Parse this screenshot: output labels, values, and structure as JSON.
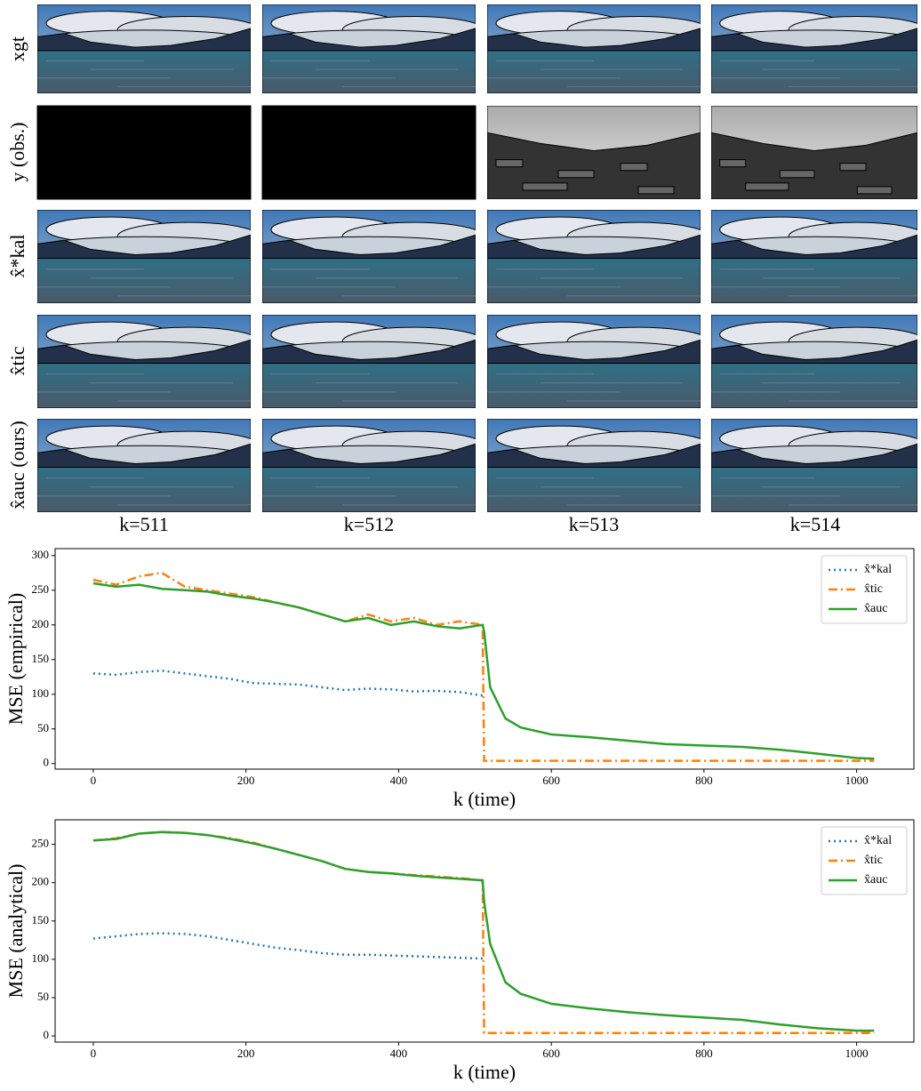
{
  "figure": {
    "row_labels": [
      "xgt",
      "y (obs.)",
      "x̂*kal",
      "x̂tic",
      "x̂auc (ours)"
    ],
    "column_labels": [
      "k=511",
      "k=512",
      "k=513",
      "k=514"
    ]
  },
  "chart_data": [
    {
      "type": "line",
      "y_label": "MSE (empirical)",
      "x_label": "k (time)",
      "x": [
        0,
        30,
        60,
        90,
        120,
        150,
        180,
        210,
        240,
        270,
        300,
        330,
        360,
        390,
        420,
        450,
        480,
        510,
        512,
        520,
        540,
        560,
        600,
        650,
        700,
        750,
        800,
        850,
        900,
        950,
        1000,
        1023
      ],
      "series": [
        {
          "name": "x̂*kal",
          "color": "#1f77b4",
          "linestyle": "dotted",
          "values": [
            130,
            128,
            132,
            134,
            130,
            126,
            122,
            116,
            115,
            114,
            110,
            106,
            108,
            107,
            104,
            105,
            103,
            98,
            null,
            null,
            null,
            null,
            null,
            null,
            null,
            null,
            null,
            null,
            null,
            null,
            null,
            null
          ]
        },
        {
          "name": "x̂tic",
          "color": "#ff7f0e",
          "linestyle": "dashdot",
          "values": [
            265,
            258,
            270,
            275,
            255,
            250,
            245,
            240,
            232,
            225,
            215,
            205,
            215,
            205,
            210,
            200,
            205,
            200,
            4,
            4,
            4,
            4,
            4,
            4,
            4,
            4,
            4,
            4,
            4,
            4,
            4,
            4
          ]
        },
        {
          "name": "x̂auc",
          "color": "#2ca02c",
          "linestyle": "solid",
          "values": [
            260,
            255,
            258,
            252,
            250,
            248,
            242,
            238,
            232,
            225,
            215,
            205,
            210,
            200,
            205,
            198,
            195,
            200,
            190,
            110,
            65,
            52,
            42,
            38,
            33,
            28,
            26,
            24,
            20,
            14,
            8,
            7
          ]
        }
      ],
      "xlim": [
        -50,
        1075
      ],
      "xticks": [
        0,
        200,
        400,
        600,
        800,
        1000
      ],
      "ylim": [
        -8,
        310
      ],
      "yticks": [
        0,
        50,
        100,
        150,
        200,
        250,
        300
      ],
      "legend": "upper right"
    },
    {
      "type": "line",
      "y_label": "MSE (analytical)",
      "x_label": "k (time)",
      "x": [
        0,
        30,
        60,
        90,
        120,
        150,
        180,
        210,
        240,
        270,
        300,
        330,
        360,
        390,
        420,
        450,
        480,
        510,
        512,
        520,
        540,
        560,
        600,
        650,
        700,
        750,
        800,
        850,
        900,
        950,
        1000,
        1023
      ],
      "series": [
        {
          "name": "x̂*kal",
          "color": "#1f77b4",
          "linestyle": "dotted",
          "values": [
            127,
            130,
            133,
            134,
            133,
            130,
            125,
            120,
            115,
            112,
            108,
            106,
            106,
            105,
            104,
            103,
            102,
            101,
            null,
            null,
            null,
            null,
            null,
            null,
            null,
            null,
            null,
            null,
            null,
            null,
            null,
            null
          ]
        },
        {
          "name": "x̂tic",
          "color": "#ff7f0e",
          "linestyle": "dashdot",
          "values": [
            255,
            258,
            264,
            266,
            265,
            262,
            258,
            252,
            244,
            236,
            228,
            218,
            214,
            212,
            210,
            208,
            206,
            203,
            4,
            4,
            4,
            4,
            4,
            4,
            4,
            4,
            4,
            4,
            4,
            4,
            4,
            4
          ]
        },
        {
          "name": "x̂auc",
          "color": "#2ca02c",
          "linestyle": "solid",
          "values": [
            255,
            257,
            264,
            266,
            265,
            262,
            257,
            251,
            244,
            236,
            228,
            218,
            214,
            212,
            209,
            207,
            205,
            203,
            175,
            120,
            70,
            55,
            42,
            36,
            31,
            27,
            24,
            21,
            15,
            10,
            7,
            7
          ]
        }
      ],
      "xlim": [
        -50,
        1075
      ],
      "xticks": [
        0,
        200,
        400,
        600,
        800,
        1000
      ],
      "ylim": [
        -8,
        282
      ],
      "yticks": [
        0,
        50,
        100,
        150,
        200,
        250
      ],
      "legend": "upper right"
    }
  ]
}
